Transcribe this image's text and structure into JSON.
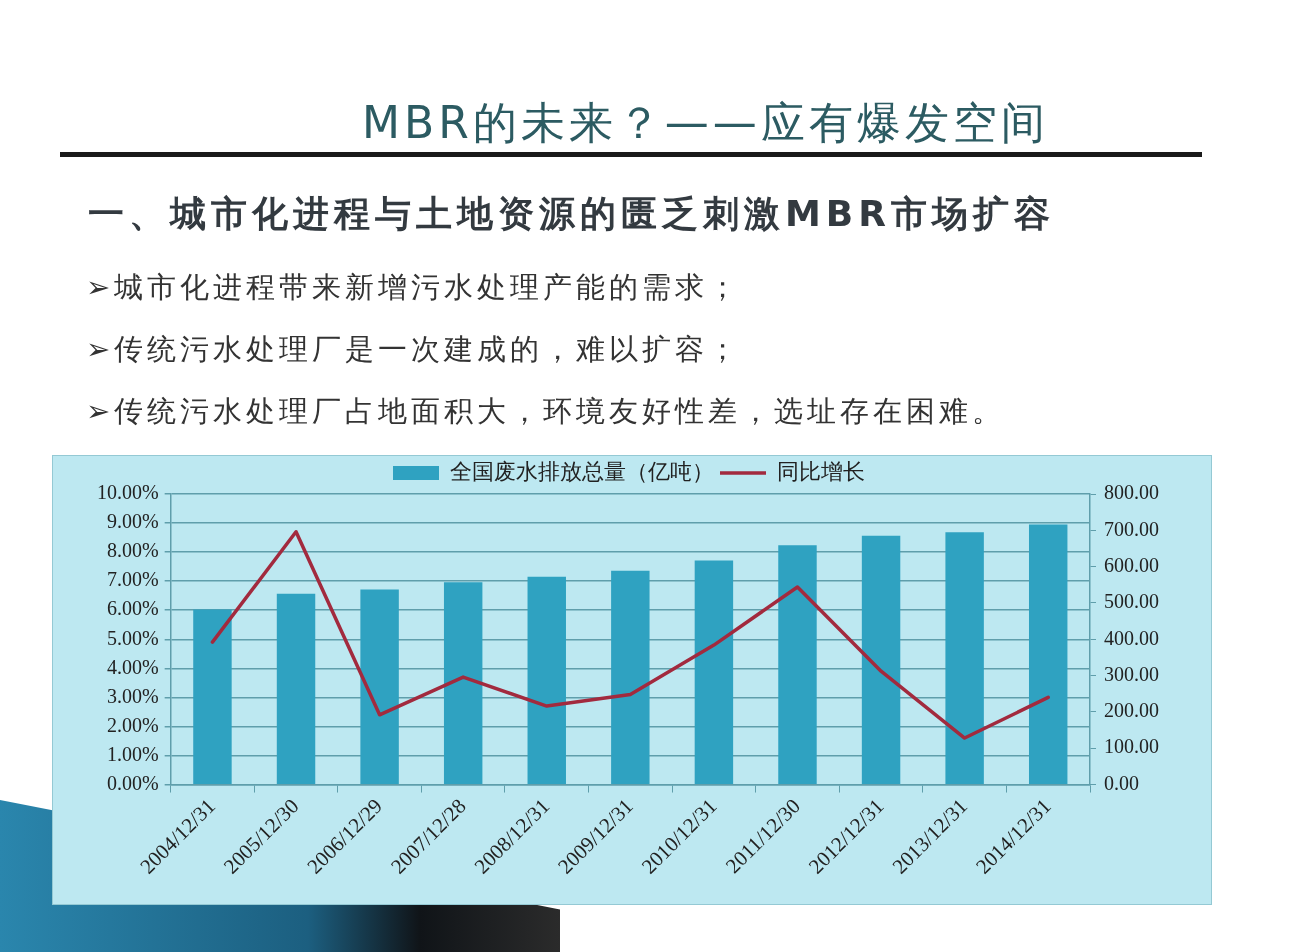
{
  "chart_data": {
    "type": "bar",
    "title": "MBR的未来？——应有爆发空间",
    "subtitle": "一、城市化进程与土地资源的匮乏刺激MBR市场扩容",
    "annotations": [
      "➢城市化进程带来新增污水处理产能的需求；",
      "➢传统污水处理厂是一次建成的，难以扩容；",
      "➢传统污水处理厂占地面积大，环境友好性差，选址存在困难。"
    ],
    "categories": [
      "2004/12/31",
      "2005/12/30",
      "2006/12/29",
      "2007/12/28",
      "2008/12/31",
      "2009/12/31",
      "2010/12/31",
      "2011/12/30",
      "2012/12/31",
      "2013/12/31",
      "2014/12/31"
    ],
    "series": [
      {
        "name": "全国废水排放总量（亿吨）",
        "axis": "y2",
        "color": "#2fa2c1",
        "values": [
          482,
          525,
          537,
          557,
          572,
          589,
          617,
          659,
          685,
          695,
          716
        ]
      },
      {
        "name": "同比增长",
        "type": "line",
        "axis": "y",
        "color": "#a22a3e",
        "values": [
          4.9,
          8.7,
          2.4,
          3.7,
          2.7,
          3.1,
          4.8,
          6.8,
          3.9,
          1.6,
          3.0
        ]
      }
    ],
    "ylim": [
      0,
      10
    ],
    "yticks": [
      {
        "value": 0,
        "label": "0.00%"
      },
      {
        "value": 1,
        "label": "1.00%"
      },
      {
        "value": 2,
        "label": "2.00%"
      },
      {
        "value": 3,
        "label": "3.00%"
      },
      {
        "value": 4,
        "label": "4.00%"
      },
      {
        "value": 5,
        "label": "5.00%"
      },
      {
        "value": 6,
        "label": "6.00%"
      },
      {
        "value": 7,
        "label": "7.00%"
      },
      {
        "value": 8,
        "label": "8.00%"
      },
      {
        "value": 9,
        "label": "9.00%"
      },
      {
        "value": 10,
        "label": "10.00%"
      }
    ],
    "y2lim": [
      0,
      800
    ],
    "y2ticks": [
      {
        "value": 0,
        "label": "0.00"
      },
      {
        "value": 100,
        "label": "100.00"
      },
      {
        "value": 200,
        "label": "200.00"
      },
      {
        "value": 300,
        "label": "300.00"
      },
      {
        "value": 400,
        "label": "400.00"
      },
      {
        "value": 500,
        "label": "500.00"
      },
      {
        "value": 600,
        "label": "600.00"
      },
      {
        "value": 700,
        "label": "700.00"
      },
      {
        "value": 800,
        "label": "800.00"
      }
    ],
    "grid": "y",
    "legend": "top",
    "marker": "none",
    "line_style": "solid"
  }
}
